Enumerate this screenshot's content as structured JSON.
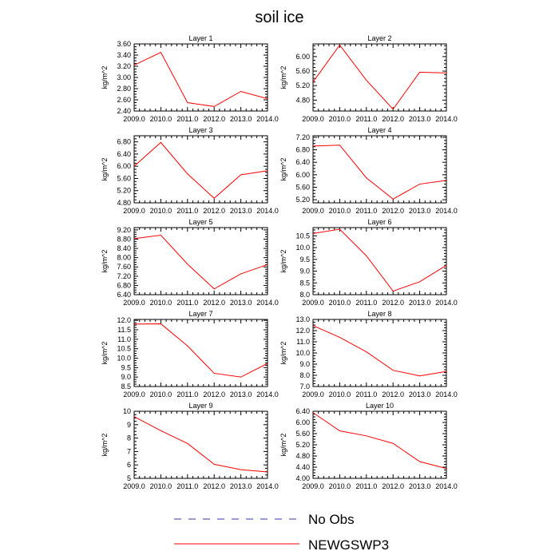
{
  "figure_title": "soil ice",
  "legend": [
    {
      "label": "No Obs",
      "color": "#3a3aa8",
      "dashed": true
    },
    {
      "label": "NEWGSWP3",
      "color": "#ff0000",
      "dashed": false
    }
  ],
  "chart_data": [
    {
      "type": "line",
      "title": "Layer 1",
      "ylabel": "kg/m^2",
      "x": [
        2009,
        2010,
        2011,
        2012,
        2013,
        2014
      ],
      "x_ticks": [
        "2009.0",
        "2010.0",
        "2011.0",
        "2012.0",
        "2013.0",
        "2014.0"
      ],
      "ylim": [
        2.4,
        3.6
      ],
      "y_ticks": [
        "2.40",
        "2.60",
        "2.80",
        "3.00",
        "3.20",
        "3.40",
        "3.60"
      ],
      "series": [
        {
          "name": "NEWGSWP3",
          "color": "#ff0000",
          "values": [
            3.22,
            3.45,
            2.55,
            2.48,
            2.75,
            2.62
          ]
        }
      ]
    },
    {
      "type": "line",
      "title": "Layer 2",
      "ylabel": "kg/m^2",
      "x": [
        2009,
        2010,
        2011,
        2012,
        2013,
        2014
      ],
      "x_ticks": [
        "2009.0",
        "2010.0",
        "2011.0",
        "2012.0",
        "2013.0",
        "2014.0"
      ],
      "ylim": [
        4.5,
        6.35
      ],
      "y_ticks": [
        "4.80",
        "5.20",
        "5.60",
        "6.00"
      ],
      "series": [
        {
          "name": "NEWGSWP3",
          "color": "#ff0000",
          "values": [
            5.3,
            6.32,
            5.35,
            4.55,
            5.57,
            5.55
          ]
        }
      ]
    },
    {
      "type": "line",
      "title": "Layer 3",
      "ylabel": "kg/m^2",
      "x": [
        2009,
        2010,
        2011,
        2012,
        2013,
        2014
      ],
      "x_ticks": [
        "2009.0",
        "2010.0",
        "2011.0",
        "2012.0",
        "2013.0",
        "2014.0"
      ],
      "ylim": [
        4.8,
        7.0
      ],
      "y_ticks": [
        "4.80",
        "5.20",
        "5.60",
        "6.00",
        "6.40",
        "6.80"
      ],
      "series": [
        {
          "name": "NEWGSWP3",
          "color": "#ff0000",
          "values": [
            6.0,
            6.78,
            5.75,
            4.95,
            5.72,
            5.85
          ]
        }
      ]
    },
    {
      "type": "line",
      "title": "Layer 4",
      "ylabel": "kg/m^2",
      "x": [
        2009,
        2010,
        2011,
        2012,
        2013,
        2014
      ],
      "x_ticks": [
        "2009.0",
        "2010.0",
        "2011.0",
        "2012.0",
        "2013.0",
        "2014.0"
      ],
      "ylim": [
        5.1,
        7.25
      ],
      "y_ticks": [
        "5.20",
        "5.60",
        "6.00",
        "6.40",
        "6.80",
        "7.20"
      ],
      "series": [
        {
          "name": "NEWGSWP3",
          "color": "#ff0000",
          "values": [
            6.92,
            6.95,
            5.9,
            5.22,
            5.7,
            5.82
          ]
        }
      ]
    },
    {
      "type": "line",
      "title": "Layer 5",
      "ylabel": "kg/m^2",
      "x": [
        2009,
        2010,
        2011,
        2012,
        2013,
        2014
      ],
      "x_ticks": [
        "2009.0",
        "2010.0",
        "2011.0",
        "2012.0",
        "2013.0",
        "2014.0"
      ],
      "ylim": [
        6.4,
        9.3
      ],
      "y_ticks": [
        "6.40",
        "6.80",
        "7.20",
        "7.60",
        "8.00",
        "8.40",
        "8.80",
        "9.20"
      ],
      "series": [
        {
          "name": "NEWGSWP3",
          "color": "#ff0000",
          "values": [
            8.82,
            8.97,
            7.72,
            6.65,
            7.3,
            7.7
          ]
        }
      ]
    },
    {
      "type": "line",
      "title": "Layer 6",
      "ylabel": "kg/m^2",
      "x": [
        2009,
        2010,
        2011,
        2012,
        2013,
        2014
      ],
      "x_ticks": [
        "2009.0",
        "2010.0",
        "2011.0",
        "2012.0",
        "2013.0",
        "2014.0"
      ],
      "ylim": [
        8.0,
        10.85
      ],
      "y_ticks": [
        "8.0",
        "8.5",
        "9.0",
        "9.5",
        "10.0",
        "10.5"
      ],
      "series": [
        {
          "name": "NEWGSWP3",
          "color": "#ff0000",
          "values": [
            10.6,
            10.78,
            9.65,
            8.15,
            8.55,
            9.25
          ]
        }
      ]
    },
    {
      "type": "line",
      "title": "Layer 7",
      "ylabel": "kg/m^2",
      "x": [
        2009,
        2010,
        2011,
        2012,
        2013,
        2014
      ],
      "x_ticks": [
        "2009.0",
        "2010.0",
        "2011.0",
        "2012.0",
        "2013.0",
        "2014.0"
      ],
      "ylim": [
        8.5,
        12.05
      ],
      "y_ticks": [
        "8.5",
        "9.0",
        "9.5",
        "10.0",
        "10.5",
        "11.0",
        "11.5",
        "12.0"
      ],
      "series": [
        {
          "name": "NEWGSWP3",
          "color": "#ff0000",
          "values": [
            11.8,
            11.82,
            10.65,
            9.2,
            9.0,
            9.72
          ]
        }
      ]
    },
    {
      "type": "line",
      "title": "Layer 8",
      "ylabel": "kg/m^2",
      "x": [
        2009,
        2010,
        2011,
        2012,
        2013,
        2014
      ],
      "x_ticks": [
        "2009.0",
        "2010.0",
        "2011.0",
        "2012.0",
        "2013.0",
        "2014.0"
      ],
      "ylim": [
        7.0,
        13.0
      ],
      "y_ticks": [
        "7.0",
        "8.0",
        "9.0",
        "10.0",
        "11.0",
        "12.0",
        "13.0"
      ],
      "series": [
        {
          "name": "NEWGSWP3",
          "color": "#ff0000",
          "values": [
            12.45,
            11.4,
            10.1,
            8.45,
            7.95,
            8.35
          ]
        }
      ]
    },
    {
      "type": "line",
      "title": "Layer 9",
      "ylabel": "kg/m^2",
      "x": [
        2009,
        2010,
        2011,
        2012,
        2013,
        2014
      ],
      "x_ticks": [
        "2009.0",
        "2010.0",
        "2011.0",
        "2012.0",
        "2013.0",
        "2014.0"
      ],
      "ylim": [
        5,
        10
      ],
      "y_ticks": [
        "5",
        "6",
        "7",
        "8",
        "9",
        "10"
      ],
      "series": [
        {
          "name": "NEWGSWP3",
          "color": "#ff0000",
          "values": [
            9.6,
            8.55,
            7.6,
            6.05,
            5.65,
            5.48
          ]
        }
      ]
    },
    {
      "type": "line",
      "title": "Layer 10",
      "ylabel": "kg/m^2",
      "x": [
        2009,
        2010,
        2011,
        2012,
        2013,
        2014
      ],
      "x_ticks": [
        "2009.0",
        "2010.0",
        "2011.0",
        "2012.0",
        "2013.0",
        "2014.0"
      ],
      "ylim": [
        4.0,
        6.4
      ],
      "y_ticks": [
        "4.00",
        "4.40",
        "4.80",
        "5.20",
        "5.60",
        "6.00",
        "6.40"
      ],
      "series": [
        {
          "name": "NEWGSWP3",
          "color": "#ff0000",
          "values": [
            6.35,
            5.7,
            5.52,
            5.25,
            4.6,
            4.35
          ]
        }
      ]
    }
  ]
}
